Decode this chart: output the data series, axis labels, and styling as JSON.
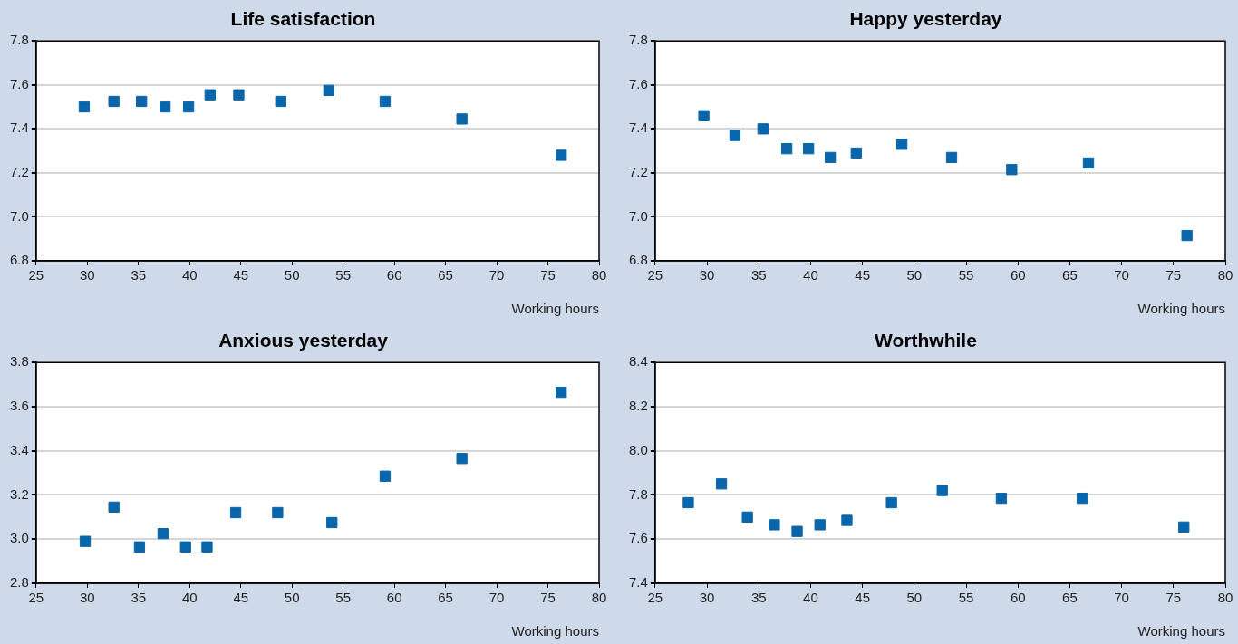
{
  "chart_data": [
    {
      "type": "scatter",
      "title": "Life satisfaction",
      "xlabel": "Working hours",
      "marker": "square",
      "grid": "y",
      "xlim": [
        25,
        80
      ],
      "xticks": [
        25,
        30,
        35,
        40,
        45,
        50,
        55,
        60,
        65,
        70,
        75,
        80
      ],
      "ylim": [
        6.8,
        7.8
      ],
      "yticks": [
        6.8,
        {
          "value": 7,
          "label": "7.0"
        },
        7.2,
        7.4,
        7.6,
        7.8
      ],
      "x": [
        29.7,
        32.6,
        35.3,
        37.6,
        39.9,
        42,
        44.8,
        48.9,
        53.6,
        59.1,
        66.6,
        76.3
      ],
      "series": [
        {
          "color": "#0a66aa",
          "values": [
            7.5,
            7.525,
            7.525,
            7.5,
            7.5,
            7.555,
            7.555,
            7.525,
            7.575,
            7.525,
            7.445,
            7.28
          ]
        }
      ]
    },
    {
      "type": "scatter",
      "title": "Happy yesterday",
      "xlabel": "Working hours",
      "marker": "square",
      "grid": "y",
      "xlim": [
        25,
        80
      ],
      "xticks": [
        25,
        30,
        35,
        40,
        45,
        50,
        55,
        60,
        65,
        70,
        75,
        80
      ],
      "ylim": [
        6.8,
        7.8
      ],
      "yticks": [
        6.8,
        {
          "value": 7,
          "label": "7.0"
        },
        7.2,
        7.4,
        7.6,
        7.8
      ],
      "x": [
        29.7,
        32.7,
        35.4,
        37.7,
        39.8,
        41.9,
        44.4,
        48.8,
        53.6,
        59.4,
        66.8,
        76.3
      ],
      "series": [
        {
          "color": "#0a66aa",
          "values": [
            7.46,
            7.37,
            7.4,
            7.31,
            7.31,
            7.27,
            7.29,
            7.33,
            7.27,
            7.215,
            7.245,
            6.915
          ]
        }
      ]
    },
    {
      "type": "scatter",
      "title": "Anxious yesterday",
      "xlabel": "Working hours",
      "marker": "square",
      "grid": "y",
      "xlim": [
        25,
        80
      ],
      "xticks": [
        25,
        30,
        35,
        40,
        45,
        50,
        55,
        60,
        65,
        70,
        75,
        80
      ],
      "ylim": [
        2.8,
        3.8
      ],
      "yticks": [
        2.8,
        {
          "value": 3,
          "label": "3.0"
        },
        3.2,
        3.4,
        3.6,
        3.8
      ],
      "x": [
        29.8,
        32.6,
        35.1,
        37.4,
        39.6,
        41.7,
        44.5,
        48.6,
        53.9,
        59.1,
        66.6,
        76.3
      ],
      "series": [
        {
          "color": "#0a66aa",
          "values": [
            2.99,
            3.145,
            2.965,
            3.025,
            2.965,
            2.965,
            3.12,
            3.12,
            3.075,
            3.285,
            3.365,
            3.665
          ]
        }
      ]
    },
    {
      "type": "scatter",
      "title": "Worthwhile",
      "xlabel": "Working hours",
      "marker": "square",
      "grid": "y",
      "xlim": [
        25,
        80
      ],
      "xticks": [
        25,
        30,
        35,
        40,
        45,
        50,
        55,
        60,
        65,
        70,
        75,
        80
      ],
      "ylim": [
        7.4,
        8.4
      ],
      "yticks": [
        7.4,
        7.6,
        7.8,
        {
          "value": 8,
          "label": "8.0"
        },
        8.2,
        8.4
      ],
      "x": [
        28.2,
        31.4,
        33.9,
        36.5,
        38.7,
        40.9,
        43.5,
        47.8,
        52.7,
        58.4,
        66.2,
        76.0
      ],
      "series": [
        {
          "color": "#0a66aa",
          "values": [
            7.765,
            7.85,
            7.7,
            7.665,
            7.635,
            7.665,
            7.685,
            7.765,
            7.82,
            7.785,
            7.785,
            7.655
          ]
        }
      ]
    }
  ]
}
